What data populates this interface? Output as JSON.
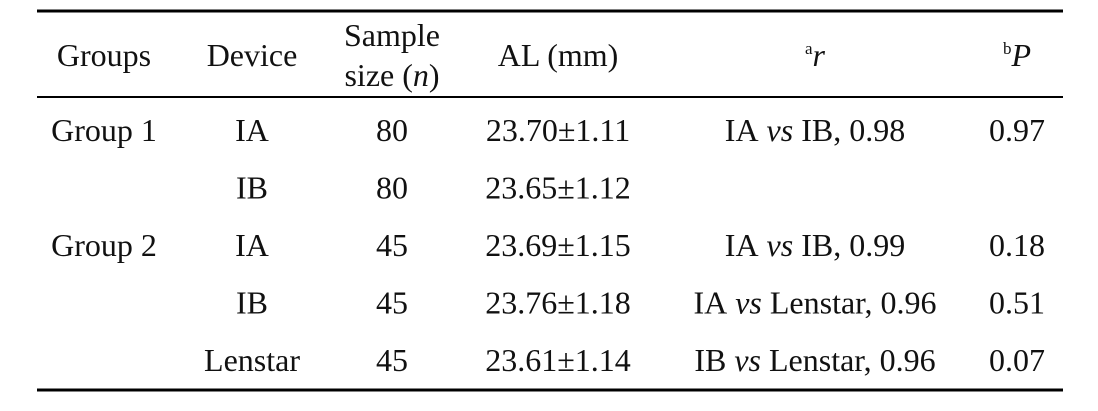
{
  "table": {
    "header": {
      "groups": "Groups",
      "device": "Device",
      "sample_size": {
        "line1": "Sample",
        "line2": "size (",
        "symbol": "n",
        "close": ")"
      },
      "al": "AL (mm)",
      "r": {
        "sup": "a",
        "symbol": "r"
      },
      "p": {
        "sup": "b",
        "symbol": "P"
      }
    },
    "rows": [
      {
        "group": "Group 1",
        "device": "IA",
        "n": "80",
        "al": "23.70±1.11",
        "r": {
          "a": "IA",
          "vs": "vs",
          "b": "IB, 0.98"
        },
        "p": "0.97"
      },
      {
        "device": "IB",
        "n": "80",
        "al": "23.65±1.12"
      },
      {
        "group": "Group 2",
        "device": "IA",
        "n": "45",
        "al": "23.69±1.15",
        "r": {
          "a": "IA",
          "vs": "vs",
          "b": "IB, 0.99"
        },
        "p": "0.18"
      },
      {
        "device": "IB",
        "n": "45",
        "al": "23.76±1.18",
        "r": {
          "a": "IA",
          "vs": "vs",
          "b": "Lenstar, 0.96"
        },
        "p": "0.51"
      },
      {
        "device": "Lenstar",
        "n": "45",
        "al": "23.61±1.14",
        "r": {
          "a": "IB",
          "vs": "vs",
          "b": "Lenstar, 0.96"
        },
        "p": "0.07"
      }
    ]
  }
}
